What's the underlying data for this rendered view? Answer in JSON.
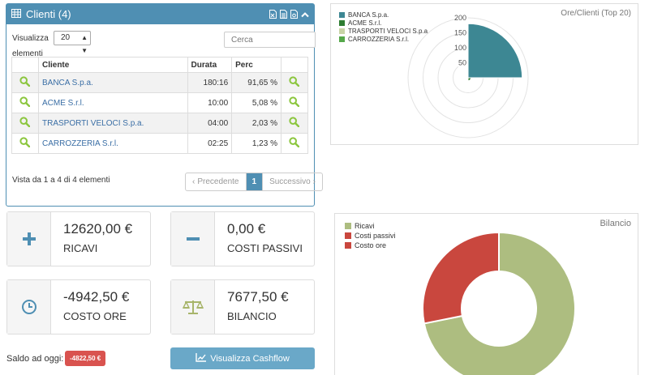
{
  "clients_panel": {
    "title": "Clienti (4)",
    "show_label": "Visualizza",
    "show_label2": "elementi",
    "page_size": "20",
    "search_placeholder": "Cerca",
    "columns": {
      "client": "Cliente",
      "duration": "Durata",
      "perc": "Perc"
    },
    "rows": [
      {
        "client": "BANCA S.p.a.",
        "duration": "180:16",
        "perc": "91,65 %"
      },
      {
        "client": "ACME S.r.l.",
        "duration": "10:00",
        "perc": "5,08 %"
      },
      {
        "client": "TRASPORTI VELOCI S.p.a.",
        "duration": "04:00",
        "perc": "2,03 %"
      },
      {
        "client": "CARROZZERIA S.r.l.",
        "duration": "02:25",
        "perc": "1,23 %"
      }
    ],
    "info": "Vista da 1 a 4 di 4 elementi",
    "pager": {
      "prev": "Precedente",
      "current": "1",
      "next": "Successivo"
    }
  },
  "kpis": {
    "ricavi": {
      "value": "12620,00 €",
      "label": "RICAVI"
    },
    "costi_passivi": {
      "value": "0,00 €",
      "label": "COSTI PASSIVI"
    },
    "costo_ore": {
      "value": "-4942,50 €",
      "label": "COSTO ORE"
    },
    "bilancio": {
      "value": "7677,50 €",
      "label": "BILANCIO"
    }
  },
  "saldo": {
    "label": "Saldo ad oggi:",
    "value": "-4822,50 €"
  },
  "cashflow_button": "Visualizza Cashflow",
  "colors": {
    "primary": "#4f8fb3",
    "icon_green": "#8cc63f",
    "polar_fill": "#3d8793",
    "ricavi": "#adbd80",
    "costi_passivi": "#c9473e",
    "costo_ore": "#c9473e",
    "badge_red": "#d9534f"
  },
  "chart_data": [
    {
      "type": "polar-area",
      "title": "Ore/Clienti (Top 20)",
      "categories": [
        "BANCA S.p.a.",
        "ACME S.r.l.",
        "TRASPORTI VELOCI S.p.a.",
        "CARROZZERIA S.r.l."
      ],
      "values": [
        180.27,
        10,
        4,
        2.42
      ],
      "colors": [
        "#3d8793",
        "#2e7d32",
        "#c8d4a6",
        "#55a84a"
      ],
      "r_ticks": [
        "50",
        "100",
        "150",
        "200"
      ],
      "r_max": 200,
      "legend": "top-left"
    },
    {
      "type": "doughnut",
      "title": "Bilancio",
      "categories": [
        "Ricavi",
        "Costi passivi",
        "Costo ore"
      ],
      "values": [
        12620.0,
        0.0,
        4942.5
      ],
      "colors": [
        "#adbd80",
        "#c9473e",
        "#c9473e"
      ],
      "legend": "top-left"
    }
  ]
}
